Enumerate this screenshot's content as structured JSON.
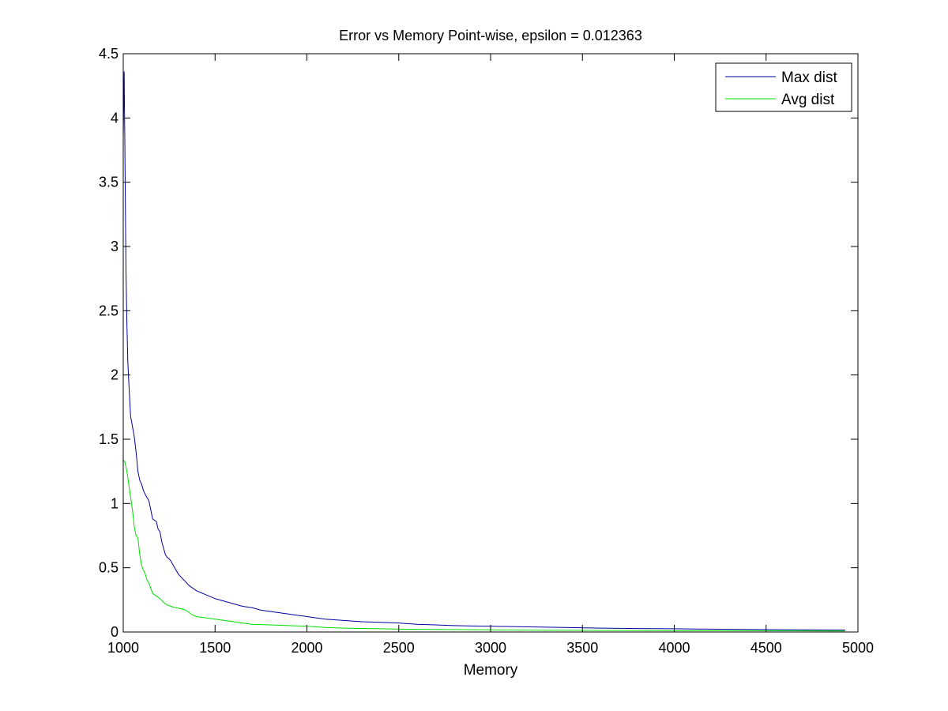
{
  "chart_data": {
    "type": "line",
    "title": "Error vs Memory Point-wise, epsilon = 0.012363",
    "xlabel": "Memory",
    "ylabel": "",
    "xlim": [
      1000,
      5000
    ],
    "ylim": [
      0,
      4.5
    ],
    "xticks": [
      1000,
      1500,
      2000,
      2500,
      3000,
      3500,
      4000,
      4500,
      5000
    ],
    "yticks": [
      0,
      0.5,
      1,
      1.5,
      2,
      2.5,
      3,
      3.5,
      4,
      4.5
    ],
    "xtick_labels": [
      "1000",
      "1500",
      "2000",
      "2500",
      "3000",
      "3500",
      "4000",
      "4500",
      "5000"
    ],
    "ytick_labels": [
      "0",
      "0.5",
      "1",
      "1.5",
      "2",
      "2.5",
      "3",
      "3.5",
      "4",
      "4.5"
    ],
    "grid": false,
    "legend_position": "top-right",
    "series": [
      {
        "name": "Max dist",
        "color": "#0000a0",
        "x": [
          1000,
          1005,
          1010,
          1015,
          1020,
          1025,
          1030,
          1040,
          1050,
          1060,
          1070,
          1080,
          1090,
          1100,
          1110,
          1120,
          1140,
          1160,
          1180,
          1190,
          1200,
          1210,
          1220,
          1230,
          1240,
          1250,
          1260,
          1280,
          1300,
          1320,
          1340,
          1360,
          1380,
          1400,
          1450,
          1500,
          1550,
          1600,
          1650,
          1700,
          1750,
          1800,
          1900,
          2000,
          2100,
          2200,
          2300,
          2400,
          2500,
          2600,
          2700,
          2800,
          2900,
          3000,
          3200,
          3400,
          3600,
          3800,
          4000,
          4200,
          4400,
          4600,
          4800,
          4930
        ],
        "y": [
          3.85,
          4.36,
          3.6,
          2.8,
          2.4,
          2.1,
          1.95,
          1.68,
          1.6,
          1.52,
          1.4,
          1.25,
          1.18,
          1.15,
          1.1,
          1.07,
          1.02,
          0.88,
          0.86,
          0.8,
          0.78,
          0.7,
          0.65,
          0.6,
          0.58,
          0.57,
          0.55,
          0.5,
          0.45,
          0.42,
          0.39,
          0.36,
          0.34,
          0.32,
          0.29,
          0.26,
          0.24,
          0.22,
          0.2,
          0.19,
          0.17,
          0.16,
          0.14,
          0.12,
          0.1,
          0.09,
          0.08,
          0.075,
          0.07,
          0.06,
          0.055,
          0.05,
          0.047,
          0.045,
          0.04,
          0.035,
          0.03,
          0.027,
          0.025,
          0.022,
          0.02,
          0.018,
          0.016,
          0.015
        ]
      },
      {
        "name": "Avg dist",
        "color": "#00dd00",
        "x": [
          1000,
          1010,
          1020,
          1030,
          1040,
          1050,
          1060,
          1070,
          1080,
          1090,
          1100,
          1110,
          1120,
          1130,
          1140,
          1150,
          1160,
          1170,
          1180,
          1190,
          1200,
          1220,
          1240,
          1260,
          1280,
          1300,
          1320,
          1340,
          1360,
          1380,
          1400,
          1450,
          1500,
          1550,
          1600,
          1650,
          1700,
          1800,
          1900,
          2000,
          2100,
          2200,
          2300,
          2400,
          2500,
          2700,
          2900,
          3100,
          3300,
          3500,
          3700,
          3900,
          4100,
          4300,
          4500,
          4700,
          4930
        ],
        "y": [
          1.34,
          1.32,
          1.25,
          1.15,
          1.05,
          0.95,
          0.82,
          0.75,
          0.73,
          0.6,
          0.52,
          0.48,
          0.45,
          0.4,
          0.38,
          0.34,
          0.3,
          0.29,
          0.28,
          0.27,
          0.26,
          0.23,
          0.21,
          0.2,
          0.19,
          0.185,
          0.18,
          0.17,
          0.15,
          0.13,
          0.12,
          0.11,
          0.1,
          0.09,
          0.08,
          0.07,
          0.06,
          0.055,
          0.05,
          0.045,
          0.035,
          0.03,
          0.028,
          0.025,
          0.022,
          0.02,
          0.018,
          0.016,
          0.014,
          0.013,
          0.012,
          0.011,
          0.01,
          0.01,
          0.009,
          0.009,
          0.008
        ]
      }
    ]
  }
}
